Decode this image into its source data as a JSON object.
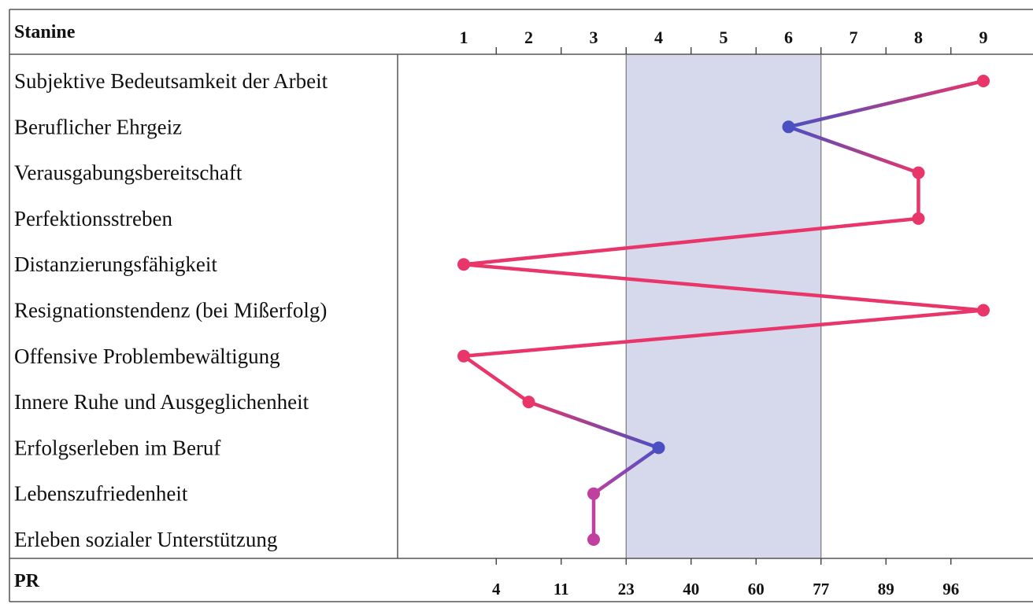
{
  "chart_data": {
    "type": "line",
    "header_left": "Stanine",
    "footer_left": "PR",
    "stanine_ticks": [
      "1",
      "2",
      "3",
      "4",
      "5",
      "6",
      "7",
      "8",
      "9"
    ],
    "pr_ticks": [
      "4",
      "11",
      "23",
      "40",
      "60",
      "77",
      "89",
      "96"
    ],
    "xlim": [
      1,
      9
    ],
    "shaded_band": [
      3.5,
      6.5
    ],
    "categories": [
      "Subjektive Bedeutsamkeit der Arbeit",
      "Beruflicher Ehrgeiz",
      "Verausgabungsbereitschaft",
      "Perfektionsstreben",
      "Distanzierungsfähigkeit",
      "Resignationstendenz (bei Mißerfolg)",
      "Offensive Problembewältigung",
      "Innere Ruhe und Ausgeglichenheit",
      "Erfolgserleben im Beruf",
      "Lebenszufriedenheit",
      "Erleben sozialer Unterstützung"
    ],
    "values": [
      9,
      6,
      8,
      8,
      1,
      9,
      1,
      2,
      4,
      3,
      3
    ]
  },
  "colors": {
    "band": "#d6d9ec",
    "extreme": "#e8356a",
    "moderate": "#c040a0",
    "normal": "#4a4fc2",
    "grid": "#555555"
  }
}
